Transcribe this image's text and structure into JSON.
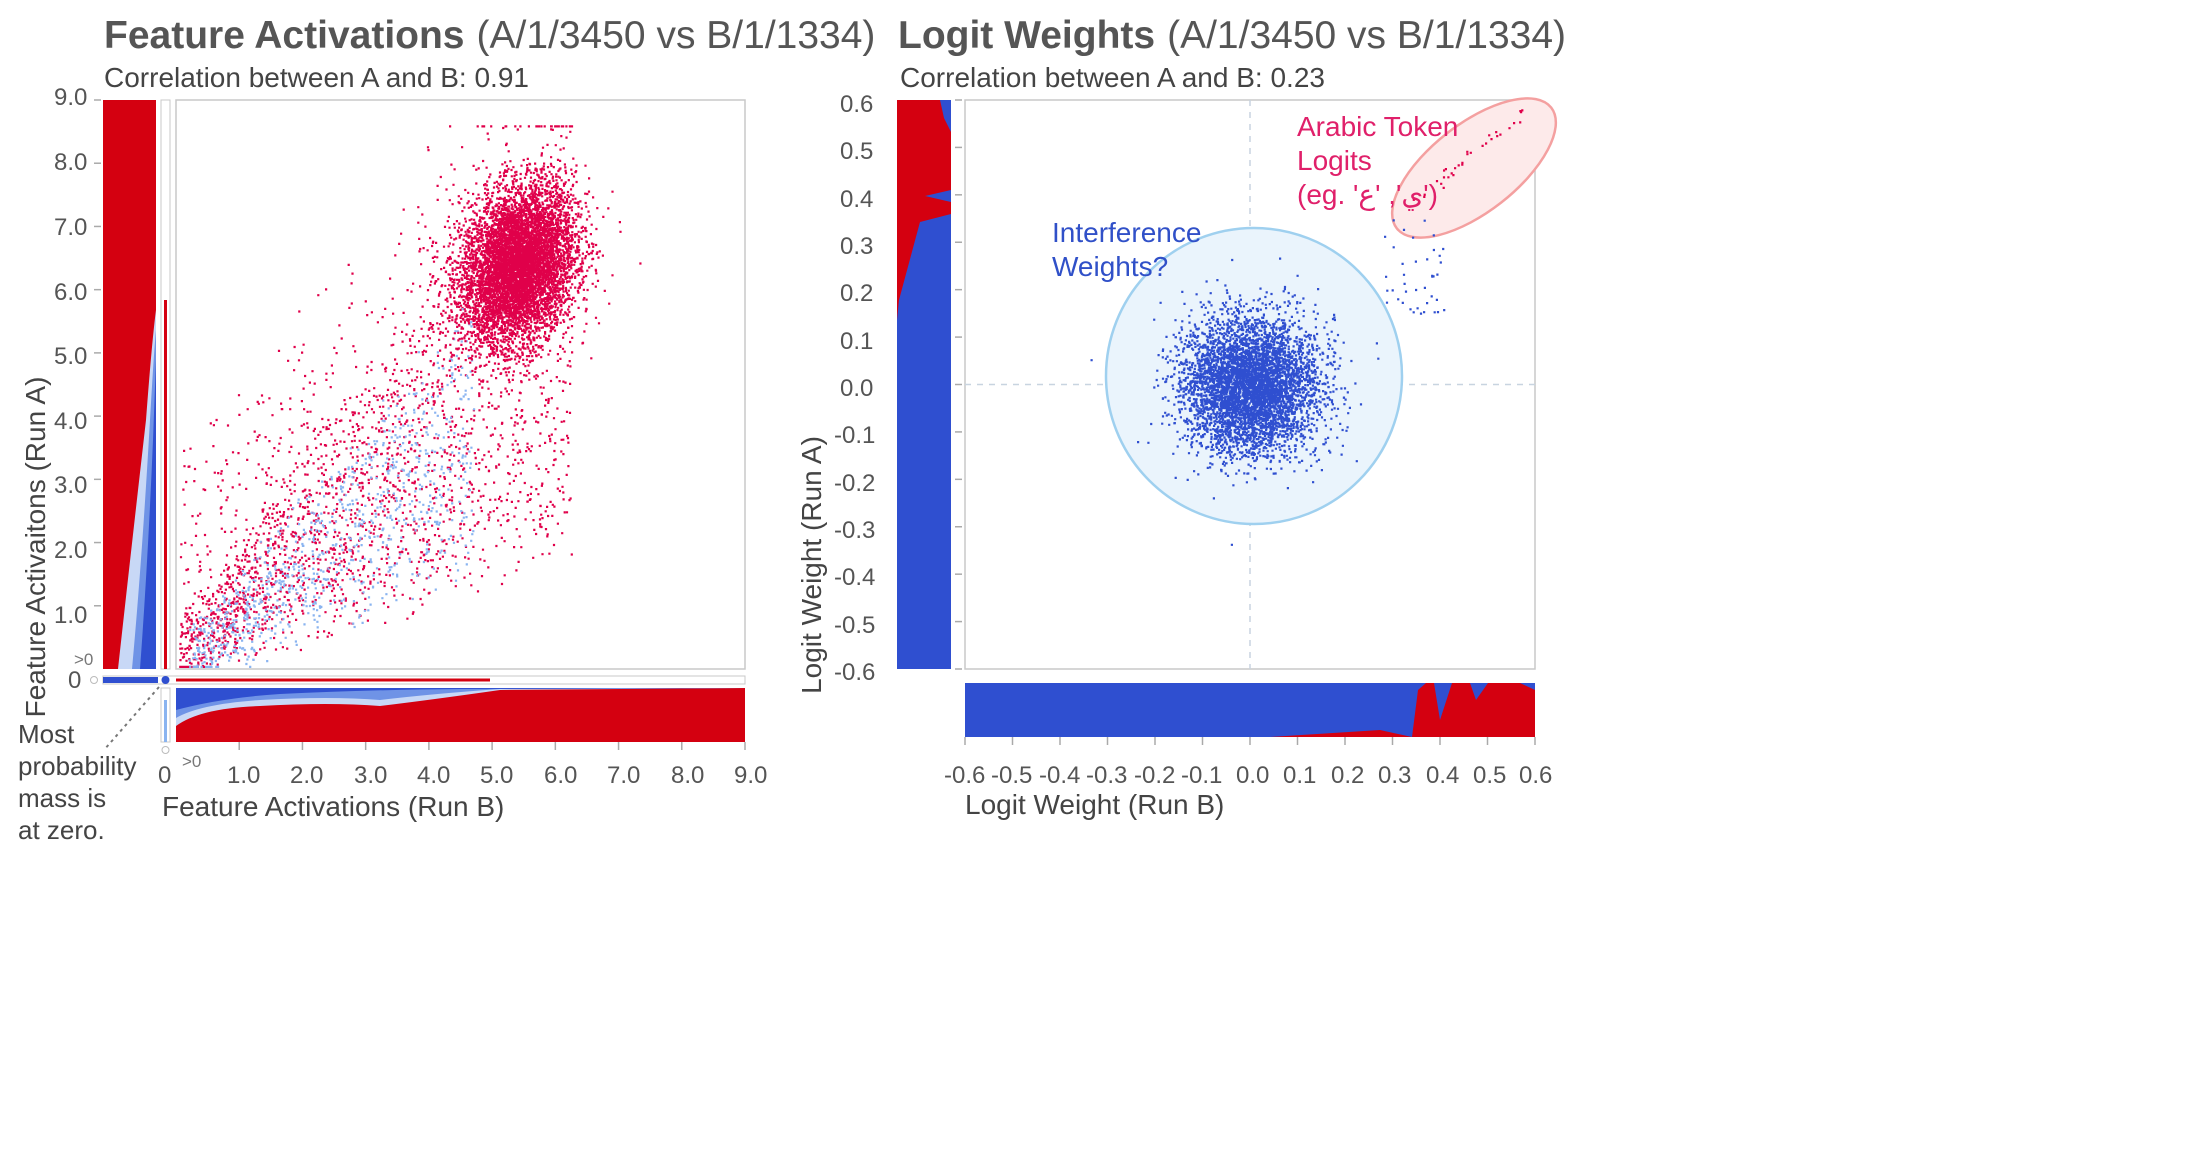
{
  "left": {
    "title": "Feature Activations",
    "subtitle": "(A/1/3450 vs B/1/1334)",
    "correlation": "Correlation between A and B: 0.91",
    "ylabel": "Feature Activaitons (Run A)",
    "xlabel": "Feature Activations (Run B)",
    "yticks": [
      "9.0",
      "8.0",
      "7.0",
      "6.0",
      "5.0",
      "4.0",
      "3.0",
      "2.0",
      "1.0"
    ],
    "xticks": [
      "1.0",
      "2.0",
      "3.0",
      "4.0",
      "5.0",
      "6.0",
      "7.0",
      "8.0",
      "9.0"
    ],
    "zero_label": "0",
    "gt0_label": ">0",
    "note": "Most probability mass is at zero."
  },
  "right": {
    "title": "Logit Weights",
    "subtitle": "(A/1/3450 vs B/1/1334)",
    "correlation": "Correlation between A and B: 0.23",
    "ylabel": "Logit Weight (Run A)",
    "xlabel": "Logit Weight (Run B)",
    "yticks": [
      "0.6",
      "0.5",
      "0.4",
      "0.3",
      "0.2",
      "0.1",
      "0.0",
      "-0.1",
      "-0.2",
      "-0.3",
      "-0.4",
      "-0.5",
      "-0.6"
    ],
    "xticks": [
      "-0.6",
      "-0.5",
      "-0.4",
      "-0.3",
      "-0.2",
      "-0.1",
      "0.0",
      "0.1",
      "0.2",
      "0.3",
      "0.4",
      "0.5",
      "0.6"
    ],
    "annotation_interference_line1": "Interference",
    "annotation_interference_line2": "Weights?",
    "annotation_arabic_line1": "Arabic Token",
    "annotation_arabic_line2": "Logits",
    "annotation_arabic_line3": "(eg. 'ي', 'ع')"
  },
  "colors": {
    "red": "#d40010",
    "pink": "#e0004a",
    "blue": "#2f4fd0",
    "light_blue": "#8ab4f0",
    "circle_fill": "#eaf4fc",
    "circle_stroke": "#9fd0ef",
    "ellipse_fill": "#fdeaea",
    "ellipse_stroke": "#f4a0a0",
    "arabic_text": "#e0206a",
    "interference_text": "#3050c8"
  },
  "chart_data": [
    {
      "type": "scatter",
      "title": "Feature Activations (A/1/3450 vs B/1/1334)",
      "subtitle": "Correlation between A and B: 0.91",
      "xlabel": "Feature Activations (Run B)",
      "ylabel": "Feature Activaitons (Run A)",
      "xlim": [
        0,
        9
      ],
      "ylim": [
        0,
        9
      ],
      "correlation": 0.91,
      "clusters": [
        {
          "name": "dense cluster",
          "center": [
            5.4,
            6.4
          ],
          "spread": [
            0.45,
            0.6
          ]
        },
        {
          "name": "diffuse cloud",
          "x_range": [
            0.1,
            6.5
          ],
          "y_range": [
            0.1,
            7.5
          ]
        }
      ],
      "marginals": "red/blue density strips along both axes; most probability mass at zero"
    },
    {
      "type": "scatter",
      "title": "Logit Weights (A/1/3450 vs B/1/1334)",
      "subtitle": "Correlation between A and B: 0.23",
      "xlabel": "Logit Weight (Run B)",
      "ylabel": "Logit Weight (Run A)",
      "xlim": [
        -0.6,
        0.6
      ],
      "ylim": [
        -0.6,
        0.6
      ],
      "correlation": 0.23,
      "clusters": [
        {
          "name": "Interference Weights?",
          "center": [
            0.0,
            0.0
          ],
          "spread": [
            0.07,
            0.07
          ]
        },
        {
          "name": "Arabic Token Logits",
          "center": [
            0.51,
            0.52
          ],
          "spread": [
            0.07,
            0.05
          ]
        }
      ]
    }
  ]
}
